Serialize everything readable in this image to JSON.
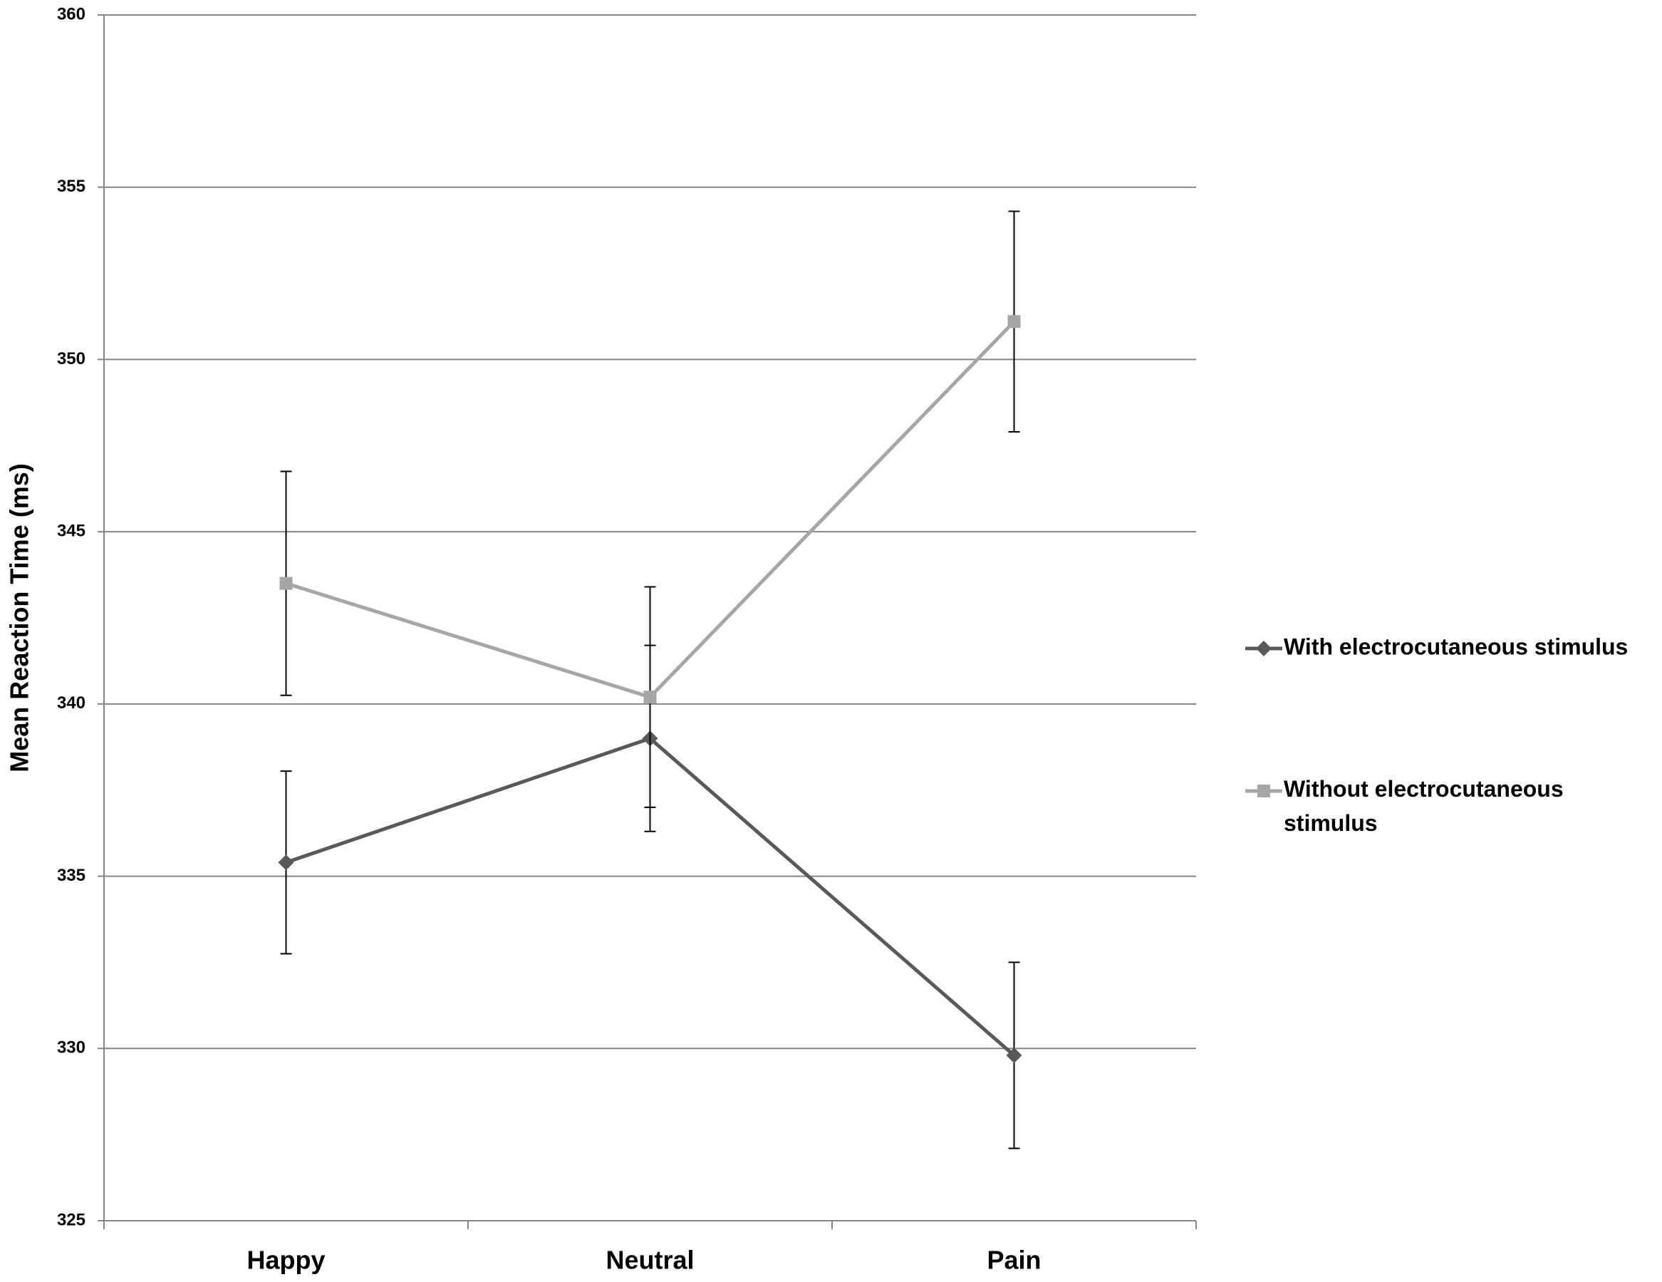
{
  "chart_data": {
    "type": "line",
    "y_label": "Mean Reaction Time (ms)",
    "categories": [
      "Happy",
      "Neutral",
      "Pain"
    ],
    "series": [
      {
        "name": "With electrocutaneous stimulus",
        "color": "#595959",
        "marker": "diamond",
        "values": [
          335.4,
          339.0,
          329.8
        ],
        "errors": [
          2.65,
          2.7,
          2.7
        ]
      },
      {
        "name": "Without electrocutaneous stimulus",
        "color": "#a6a6a6",
        "marker": "square",
        "values": [
          343.5,
          340.2,
          351.1
        ],
        "errors": [
          3.25,
          3.2,
          3.2
        ]
      }
    ],
    "ylim": [
      325,
      360
    ],
    "yticks": [
      325,
      330,
      335,
      340,
      345,
      350,
      355,
      360
    ],
    "grid": true,
    "legend": "right"
  }
}
